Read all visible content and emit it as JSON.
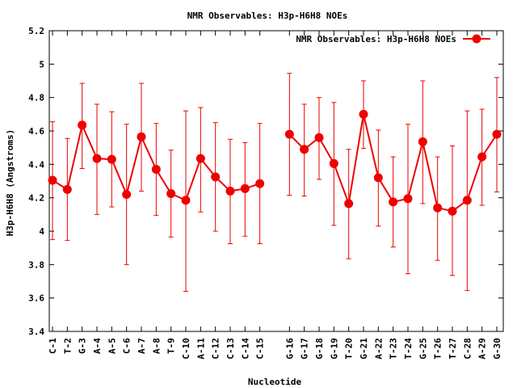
{
  "chart_data": {
    "type": "line",
    "title": "NMR Observables: H3p-H6H8 NOEs",
    "xlabel": "Nucleotide",
    "ylabel": "H3p-H6H8 (Angstroms)",
    "ylim": [
      3.4,
      5.2
    ],
    "yticks": [
      "3.4",
      "3.6",
      "3.8",
      "4",
      "4.2",
      "4.4",
      "4.6",
      "4.8",
      "5",
      "5.2"
    ],
    "grid": false,
    "legend_position": "top-right",
    "color": "#ee0000",
    "categories": [
      "C-1",
      "T-2",
      "G-3",
      "A-4",
      "A-5",
      "C-6",
      "A-7",
      "A-8",
      "T-9",
      "C-10",
      "A-11",
      "C-12",
      "C-13",
      "C-14",
      "C-15",
      "G-16",
      "G-17",
      "G-18",
      "G-19",
      "T-20",
      "G-21",
      "A-22",
      "T-23",
      "T-24",
      "G-25",
      "T-26",
      "T-27",
      "C-28",
      "A-29",
      "G-30"
    ],
    "series": [
      {
        "name": "NMR Observables: H3p-H6H8 NOEs",
        "values": [
          4.305,
          4.25,
          4.635,
          4.435,
          4.43,
          4.22,
          4.565,
          4.37,
          4.225,
          4.185,
          4.435,
          4.325,
          4.24,
          4.255,
          4.285,
          4.58,
          4.49,
          4.56,
          4.405,
          4.165,
          4.7,
          4.32,
          4.175,
          4.195,
          4.535,
          4.14,
          4.12,
          4.185,
          4.445,
          4.58
        ],
        "error_low": [
          3.95,
          3.945,
          4.375,
          4.1,
          4.145,
          3.8,
          4.24,
          4.095,
          3.965,
          3.64,
          4.115,
          4.0,
          3.925,
          3.97,
          3.925,
          4.215,
          4.21,
          4.31,
          4.035,
          3.835,
          4.495,
          4.03,
          3.905,
          3.745,
          4.165,
          3.825,
          3.735,
          3.645,
          4.155,
          4.235
        ],
        "error_high": [
          4.655,
          4.555,
          4.885,
          4.76,
          4.715,
          4.64,
          4.885,
          4.645,
          4.485,
          4.72,
          4.74,
          4.65,
          4.55,
          4.53,
          4.645,
          4.945,
          4.76,
          4.8,
          4.77,
          4.49,
          4.9,
          4.605,
          4.445,
          4.64,
          4.9,
          4.445,
          4.51,
          4.72,
          4.73,
          4.92
        ]
      }
    ],
    "gap_after": [
      "C-15"
    ]
  }
}
